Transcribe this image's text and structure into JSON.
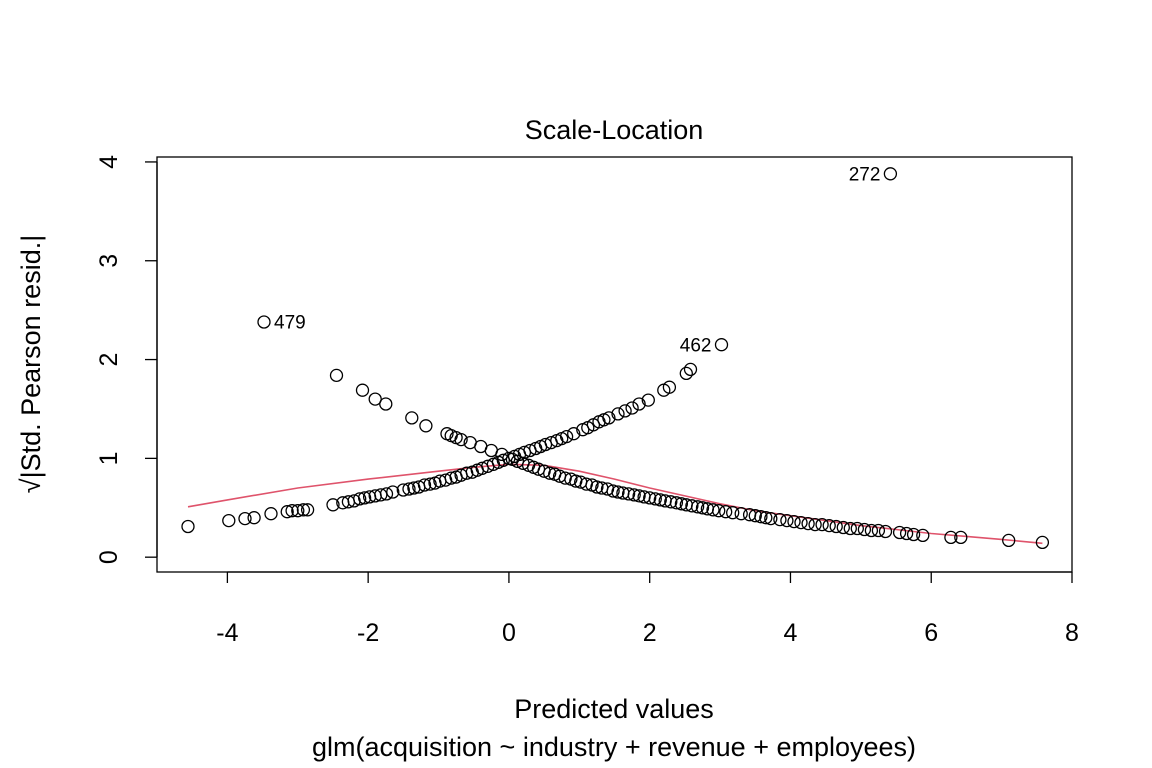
{
  "chart_data": {
    "type": "scatter",
    "title": "Scale-Location",
    "xlabel": "Predicted values",
    "subtitle": "glm(acquisition ~ industry + revenue + employees)",
    "ylabel": "√|Std. Pearson resid.|",
    "xlim": [
      -5.0,
      8.0
    ],
    "ylim": [
      -0.15,
      4.05
    ],
    "xticks": [
      "-4",
      "-2",
      "0",
      "2",
      "4",
      "6",
      "8"
    ],
    "yticks": [
      "0",
      "1",
      "2",
      "3",
      "4"
    ],
    "grid": false,
    "colors": {
      "points": "#000000",
      "smoother": "#DF536B"
    },
    "points": [
      [
        -4.56,
        0.31
      ],
      [
        -3.98,
        0.37
      ],
      [
        -3.75,
        0.39
      ],
      [
        -3.62,
        0.4
      ],
      [
        -3.38,
        0.44
      ],
      [
        -3.15,
        0.46
      ],
      [
        -3.08,
        0.47
      ],
      [
        -3.0,
        0.47
      ],
      [
        -2.92,
        0.48
      ],
      [
        -2.86,
        0.48
      ],
      [
        -2.5,
        0.53
      ],
      [
        -2.36,
        0.55
      ],
      [
        -2.28,
        0.56
      ],
      [
        -2.2,
        0.57
      ],
      [
        -2.12,
        0.59
      ],
      [
        -2.05,
        0.6
      ],
      [
        -1.98,
        0.61
      ],
      [
        -1.9,
        0.62
      ],
      [
        -1.82,
        0.63
      ],
      [
        -1.74,
        0.64
      ],
      [
        -1.65,
        0.66
      ],
      [
        -1.5,
        0.68
      ],
      [
        -1.42,
        0.69
      ],
      [
        -1.35,
        0.7
      ],
      [
        -1.28,
        0.71
      ],
      [
        -1.2,
        0.73
      ],
      [
        -1.12,
        0.74
      ],
      [
        -1.05,
        0.75
      ],
      [
        -0.98,
        0.77
      ],
      [
        -0.9,
        0.78
      ],
      [
        -0.82,
        0.8
      ],
      [
        -0.75,
        0.81
      ],
      [
        -0.68,
        0.83
      ],
      [
        -0.6,
        0.85
      ],
      [
        -0.52,
        0.86
      ],
      [
        -0.45,
        0.88
      ],
      [
        -0.38,
        0.9
      ],
      [
        -0.3,
        0.92
      ],
      [
        -0.22,
        0.94
      ],
      [
        -0.15,
        0.96
      ],
      [
        -0.08,
        0.98
      ],
      [
        0.0,
        1.0
      ],
      [
        0.08,
        1.02
      ],
      [
        0.15,
        1.04
      ],
      [
        0.22,
        1.06
      ],
      [
        0.3,
        1.08
      ],
      [
        0.38,
        1.1
      ],
      [
        0.45,
        1.12
      ],
      [
        0.52,
        1.14
      ],
      [
        0.6,
        1.16
      ],
      [
        0.68,
        1.18
      ],
      [
        0.75,
        1.2
      ],
      [
        0.82,
        1.22
      ],
      [
        0.92,
        1.25
      ],
      [
        1.05,
        1.29
      ],
      [
        1.12,
        1.31
      ],
      [
        1.2,
        1.34
      ],
      [
        1.28,
        1.37
      ],
      [
        1.35,
        1.39
      ],
      [
        1.42,
        1.41
      ],
      [
        1.55,
        1.45
      ],
      [
        1.65,
        1.48
      ],
      [
        1.75,
        1.51
      ],
      [
        1.85,
        1.55
      ],
      [
        1.98,
        1.59
      ],
      [
        2.2,
        1.69
      ],
      [
        2.28,
        1.72
      ],
      [
        2.52,
        1.86
      ],
      [
        2.58,
        1.9
      ],
      [
        3.02,
        2.15
      ],
      [
        -3.48,
        2.38
      ],
      [
        -2.45,
        1.84
      ],
      [
        -2.08,
        1.69
      ],
      [
        -1.9,
        1.6
      ],
      [
        -1.75,
        1.55
      ],
      [
        -1.38,
        1.41
      ],
      [
        -1.18,
        1.33
      ],
      [
        -0.88,
        1.25
      ],
      [
        -0.82,
        1.23
      ],
      [
        -0.75,
        1.21
      ],
      [
        -0.68,
        1.19
      ],
      [
        -0.55,
        1.16
      ],
      [
        -0.4,
        1.12
      ],
      [
        -0.25,
        1.08
      ],
      [
        -0.1,
        1.04
      ],
      [
        0.05,
        0.99
      ],
      [
        0.12,
        0.97
      ],
      [
        0.2,
        0.95
      ],
      [
        0.28,
        0.93
      ],
      [
        0.35,
        0.91
      ],
      [
        0.42,
        0.89
      ],
      [
        0.5,
        0.87
      ],
      [
        0.58,
        0.85
      ],
      [
        0.65,
        0.84
      ],
      [
        0.72,
        0.82
      ],
      [
        0.8,
        0.8
      ],
      [
        0.88,
        0.79
      ],
      [
        0.95,
        0.77
      ],
      [
        1.02,
        0.76
      ],
      [
        1.1,
        0.74
      ],
      [
        1.18,
        0.73
      ],
      [
        1.25,
        0.71
      ],
      [
        1.32,
        0.7
      ],
      [
        1.4,
        0.69
      ],
      [
        1.48,
        0.67
      ],
      [
        1.55,
        0.66
      ],
      [
        1.62,
        0.65
      ],
      [
        1.7,
        0.64
      ],
      [
        1.78,
        0.63
      ],
      [
        1.85,
        0.62
      ],
      [
        1.92,
        0.61
      ],
      [
        2.0,
        0.6
      ],
      [
        2.08,
        0.59
      ],
      [
        2.15,
        0.58
      ],
      [
        2.22,
        0.57
      ],
      [
        2.3,
        0.56
      ],
      [
        2.38,
        0.55
      ],
      [
        2.45,
        0.54
      ],
      [
        2.52,
        0.53
      ],
      [
        2.6,
        0.52
      ],
      [
        2.68,
        0.51
      ],
      [
        2.75,
        0.5
      ],
      [
        2.82,
        0.49
      ],
      [
        2.9,
        0.48
      ],
      [
        2.98,
        0.47
      ],
      [
        3.08,
        0.46
      ],
      [
        3.18,
        0.45
      ],
      [
        3.3,
        0.44
      ],
      [
        3.42,
        0.43
      ],
      [
        3.5,
        0.42
      ],
      [
        3.58,
        0.41
      ],
      [
        3.65,
        0.4
      ],
      [
        3.72,
        0.39
      ],
      [
        3.85,
        0.38
      ],
      [
        3.95,
        0.37
      ],
      [
        4.05,
        0.36
      ],
      [
        4.15,
        0.35
      ],
      [
        4.25,
        0.34
      ],
      [
        4.35,
        0.33
      ],
      [
        4.45,
        0.33
      ],
      [
        4.55,
        0.32
      ],
      [
        4.65,
        0.31
      ],
      [
        4.75,
        0.3
      ],
      [
        4.85,
        0.29
      ],
      [
        4.95,
        0.29
      ],
      [
        5.05,
        0.28
      ],
      [
        5.15,
        0.27
      ],
      [
        5.25,
        0.27
      ],
      [
        5.35,
        0.26
      ],
      [
        5.55,
        0.25
      ],
      [
        5.65,
        0.24
      ],
      [
        5.75,
        0.23
      ],
      [
        5.88,
        0.22
      ],
      [
        6.28,
        0.2
      ],
      [
        6.42,
        0.2
      ],
      [
        7.1,
        0.17
      ],
      [
        7.58,
        0.15
      ],
      [
        5.42,
        3.88
      ]
    ],
    "smoother": [
      [
        -4.56,
        0.51
      ],
      [
        -4.0,
        0.58
      ],
      [
        -3.0,
        0.7
      ],
      [
        -2.0,
        0.79
      ],
      [
        -1.0,
        0.87
      ],
      [
        -0.5,
        0.91
      ],
      [
        0.0,
        0.94
      ],
      [
        0.5,
        0.93
      ],
      [
        1.0,
        0.87
      ],
      [
        1.5,
        0.79
      ],
      [
        2.0,
        0.7
      ],
      [
        2.5,
        0.62
      ],
      [
        3.0,
        0.54
      ],
      [
        3.5,
        0.47
      ],
      [
        4.0,
        0.42
      ],
      [
        4.5,
        0.37
      ],
      [
        5.0,
        0.32
      ],
      [
        5.5,
        0.28
      ],
      [
        6.0,
        0.24
      ],
      [
        6.5,
        0.21
      ],
      [
        7.0,
        0.18
      ],
      [
        7.58,
        0.14
      ]
    ],
    "annotations": [
      {
        "label": "272",
        "x": 5.42,
        "y": 3.88,
        "side": "left"
      },
      {
        "label": "479",
        "x": -3.48,
        "y": 2.38,
        "side": "right"
      },
      {
        "label": "462",
        "x": 3.02,
        "y": 2.15,
        "side": "left"
      }
    ]
  }
}
